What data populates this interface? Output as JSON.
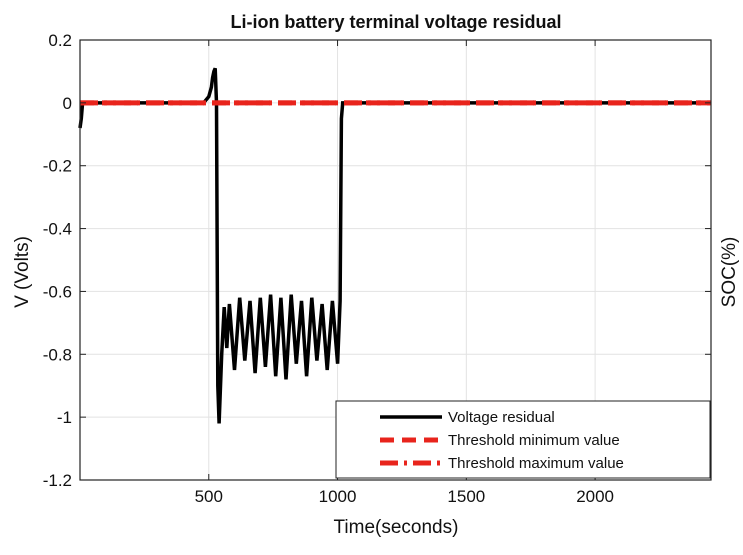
{
  "chart_data": {
    "type": "line",
    "title": "Li-ion battery terminal voltage residual",
    "xlabel": "Time(seconds)",
    "ylabel": "V (Volts)",
    "ylabel_right": "SOC(%)",
    "xlim": [
      0,
      2450
    ],
    "ylim": [
      -1.2,
      0.2
    ],
    "xticks": [
      500,
      1000,
      1500,
      2000
    ],
    "xtick_labels": [
      "500",
      "1000",
      "1500",
      "2000"
    ],
    "yticks": [
      0.2,
      0,
      -0.2,
      -0.4,
      -0.6,
      -0.8,
      -1,
      -1.2
    ],
    "ytick_labels": [
      "0.2",
      "0",
      "-0.2",
      "-0.4",
      "-0.6",
      "-0.8",
      "-1",
      "-1.2"
    ],
    "grid": true,
    "legend_position": "bottom-right",
    "series": [
      {
        "name": "Voltage residual",
        "color": "#000000",
        "style": "solid",
        "x": [
          0,
          5,
          10,
          40,
          100,
          200,
          300,
          400,
          450,
          480,
          500,
          510,
          515,
          520,
          525,
          530,
          535,
          540,
          550,
          560,
          570,
          580,
          600,
          620,
          640,
          660,
          680,
          700,
          720,
          740,
          760,
          780,
          800,
          820,
          840,
          860,
          880,
          900,
          920,
          940,
          960,
          980,
          1000,
          1010,
          1015,
          1020,
          1100,
          1500,
          2000,
          2450
        ],
        "y": [
          -0.08,
          -0.05,
          0.0,
          0.0,
          0.0,
          0.0,
          0.0,
          0.0,
          0.0,
          0.0,
          0.02,
          0.05,
          0.08,
          0.1,
          0.11,
          0.0,
          -0.9,
          -1.02,
          -0.8,
          -0.65,
          -0.78,
          -0.64,
          -0.85,
          -0.62,
          -0.82,
          -0.63,
          -0.86,
          -0.62,
          -0.84,
          -0.61,
          -0.87,
          -0.62,
          -0.88,
          -0.61,
          -0.83,
          -0.63,
          -0.87,
          -0.62,
          -0.82,
          -0.64,
          -0.85,
          -0.63,
          -0.83,
          -0.63,
          -0.05,
          0.0,
          0.0,
          0.0,
          0.0,
          0.0
        ]
      },
      {
        "name": "Threshold minimum value",
        "color": "#e8241c",
        "style": "dashed",
        "x": [
          0,
          2450
        ],
        "y": [
          0,
          0
        ]
      },
      {
        "name": "Threshold maximum value",
        "color": "#e8241c",
        "style": "dashdot",
        "x": [
          0,
          2450
        ],
        "y": [
          0,
          0
        ]
      }
    ]
  }
}
